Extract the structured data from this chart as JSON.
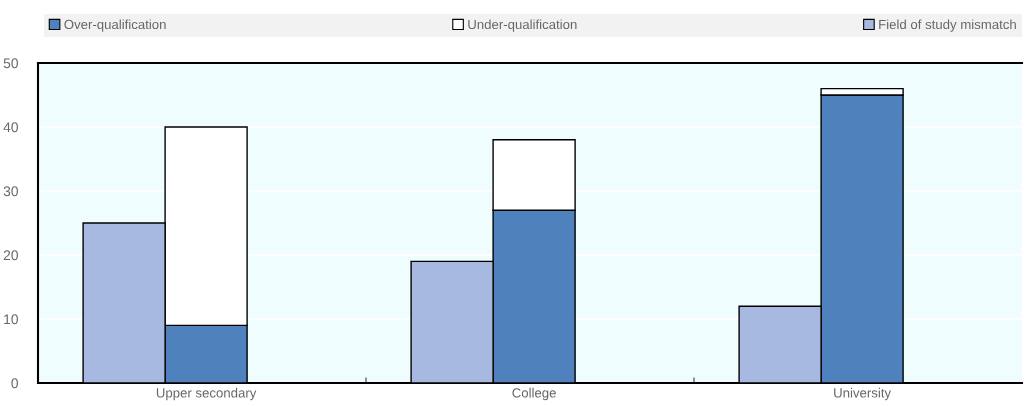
{
  "chart_data": {
    "type": "bar",
    "stacked": true,
    "categories": [
      null,
      "Upper secondary",
      null,
      null,
      null,
      "College",
      null,
      null,
      null,
      "University",
      null,
      null
    ],
    "series": [
      {
        "name": "Over-qualification",
        "color": "#4f81bd",
        "values": [
          null,
          9,
          null,
          null,
          null,
          27,
          null,
          null,
          null,
          45,
          null,
          null
        ]
      },
      {
        "name": "Under-qualification",
        "color": "#ffffff",
        "values": [
          null,
          31,
          null,
          null,
          null,
          11,
          null,
          null,
          null,
          1,
          null,
          null
        ]
      },
      {
        "name": "Field of study mismatch",
        "color": "#a7b8e1",
        "values": [
          25,
          null,
          null,
          null,
          19,
          null,
          null,
          null,
          12,
          null,
          null,
          null
        ]
      }
    ],
    "ylim": [
      0,
      50
    ],
    "yticks": [
      0,
      10,
      20,
      30,
      40,
      50
    ],
    "grid": "y",
    "legend": "top"
  }
}
